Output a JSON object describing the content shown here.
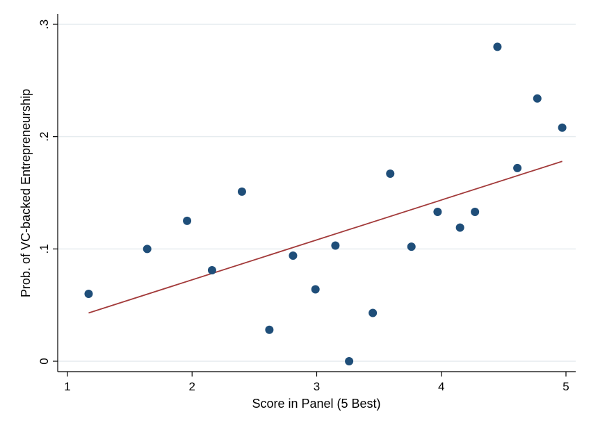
{
  "chart_data": {
    "type": "scatter",
    "xlabel": "Score in Panel (5 Best)",
    "ylabel": "Prob. of VC-backed Entrepreneurship",
    "xlim": [
      1,
      5
    ],
    "ylim": [
      0,
      0.3
    ],
    "xticks": [
      {
        "value": 1,
        "label": "1"
      },
      {
        "value": 2,
        "label": "2"
      },
      {
        "value": 3,
        "label": "3"
      },
      {
        "value": 4,
        "label": "4"
      },
      {
        "value": 5,
        "label": "5"
      }
    ],
    "yticks": [
      {
        "value": 0,
        "label": "0"
      },
      {
        "value": 0.1,
        "label": ".1"
      },
      {
        "value": 0.2,
        "label": ".2"
      },
      {
        "value": 0.3,
        "label": ".3"
      }
    ],
    "grid": true,
    "legend": "none",
    "points": [
      {
        "x": 1.17,
        "y": 0.06
      },
      {
        "x": 1.64,
        "y": 0.1
      },
      {
        "x": 1.96,
        "y": 0.125
      },
      {
        "x": 2.16,
        "y": 0.081
      },
      {
        "x": 2.4,
        "y": 0.151
      },
      {
        "x": 2.62,
        "y": 0.028
      },
      {
        "x": 2.81,
        "y": 0.094
      },
      {
        "x": 2.99,
        "y": 0.064
      },
      {
        "x": 3.15,
        "y": 0.103
      },
      {
        "x": 3.26,
        "y": 0.0
      },
      {
        "x": 3.45,
        "y": 0.043
      },
      {
        "x": 3.59,
        "y": 0.167
      },
      {
        "x": 3.76,
        "y": 0.102
      },
      {
        "x": 3.97,
        "y": 0.133
      },
      {
        "x": 4.15,
        "y": 0.119
      },
      {
        "x": 4.27,
        "y": 0.133
      },
      {
        "x": 4.45,
        "y": 0.28
      },
      {
        "x": 4.61,
        "y": 0.172
      },
      {
        "x": 4.77,
        "y": 0.234
      },
      {
        "x": 4.97,
        "y": 0.208
      }
    ],
    "fit_line": {
      "x": [
        1.17,
        4.97
      ],
      "y": [
        0.043,
        0.178
      ]
    },
    "colors": {
      "points": "#1f4e79",
      "fit_line": "#a33b3b",
      "grid": "#e6ecef",
      "axis": "#000000"
    }
  }
}
